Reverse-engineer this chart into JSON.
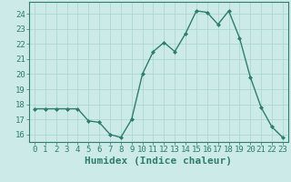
{
  "x": [
    0,
    1,
    2,
    3,
    4,
    5,
    6,
    7,
    8,
    9,
    10,
    11,
    12,
    13,
    14,
    15,
    16,
    17,
    18,
    19,
    20,
    21,
    22,
    23
  ],
  "y": [
    17.7,
    17.7,
    17.7,
    17.7,
    17.7,
    16.9,
    16.8,
    16.0,
    15.8,
    17.0,
    20.0,
    21.5,
    22.1,
    21.5,
    22.7,
    24.2,
    24.1,
    23.3,
    24.2,
    22.4,
    19.8,
    17.8,
    16.5,
    15.8
  ],
  "xlabel": "Humidex (Indice chaleur)",
  "ylim": [
    15.5,
    24.8
  ],
  "xlim": [
    -0.5,
    23.5
  ],
  "yticks": [
    16,
    17,
    18,
    19,
    20,
    21,
    22,
    23,
    24
  ],
  "xticks": [
    0,
    1,
    2,
    3,
    4,
    5,
    6,
    7,
    8,
    9,
    10,
    11,
    12,
    13,
    14,
    15,
    16,
    17,
    18,
    19,
    20,
    21,
    22,
    23
  ],
  "line_color": "#2e7d6e",
  "marker_color": "#2e7d6e",
  "bg_color": "#cceae7",
  "grid_color": "#aad4d0",
  "axis_color": "#2e7d6e",
  "tick_label_color": "#2e7d6e",
  "xlabel_color": "#2e7d6e",
  "font_size": 6.5,
  "xlabel_font_size": 8.0
}
